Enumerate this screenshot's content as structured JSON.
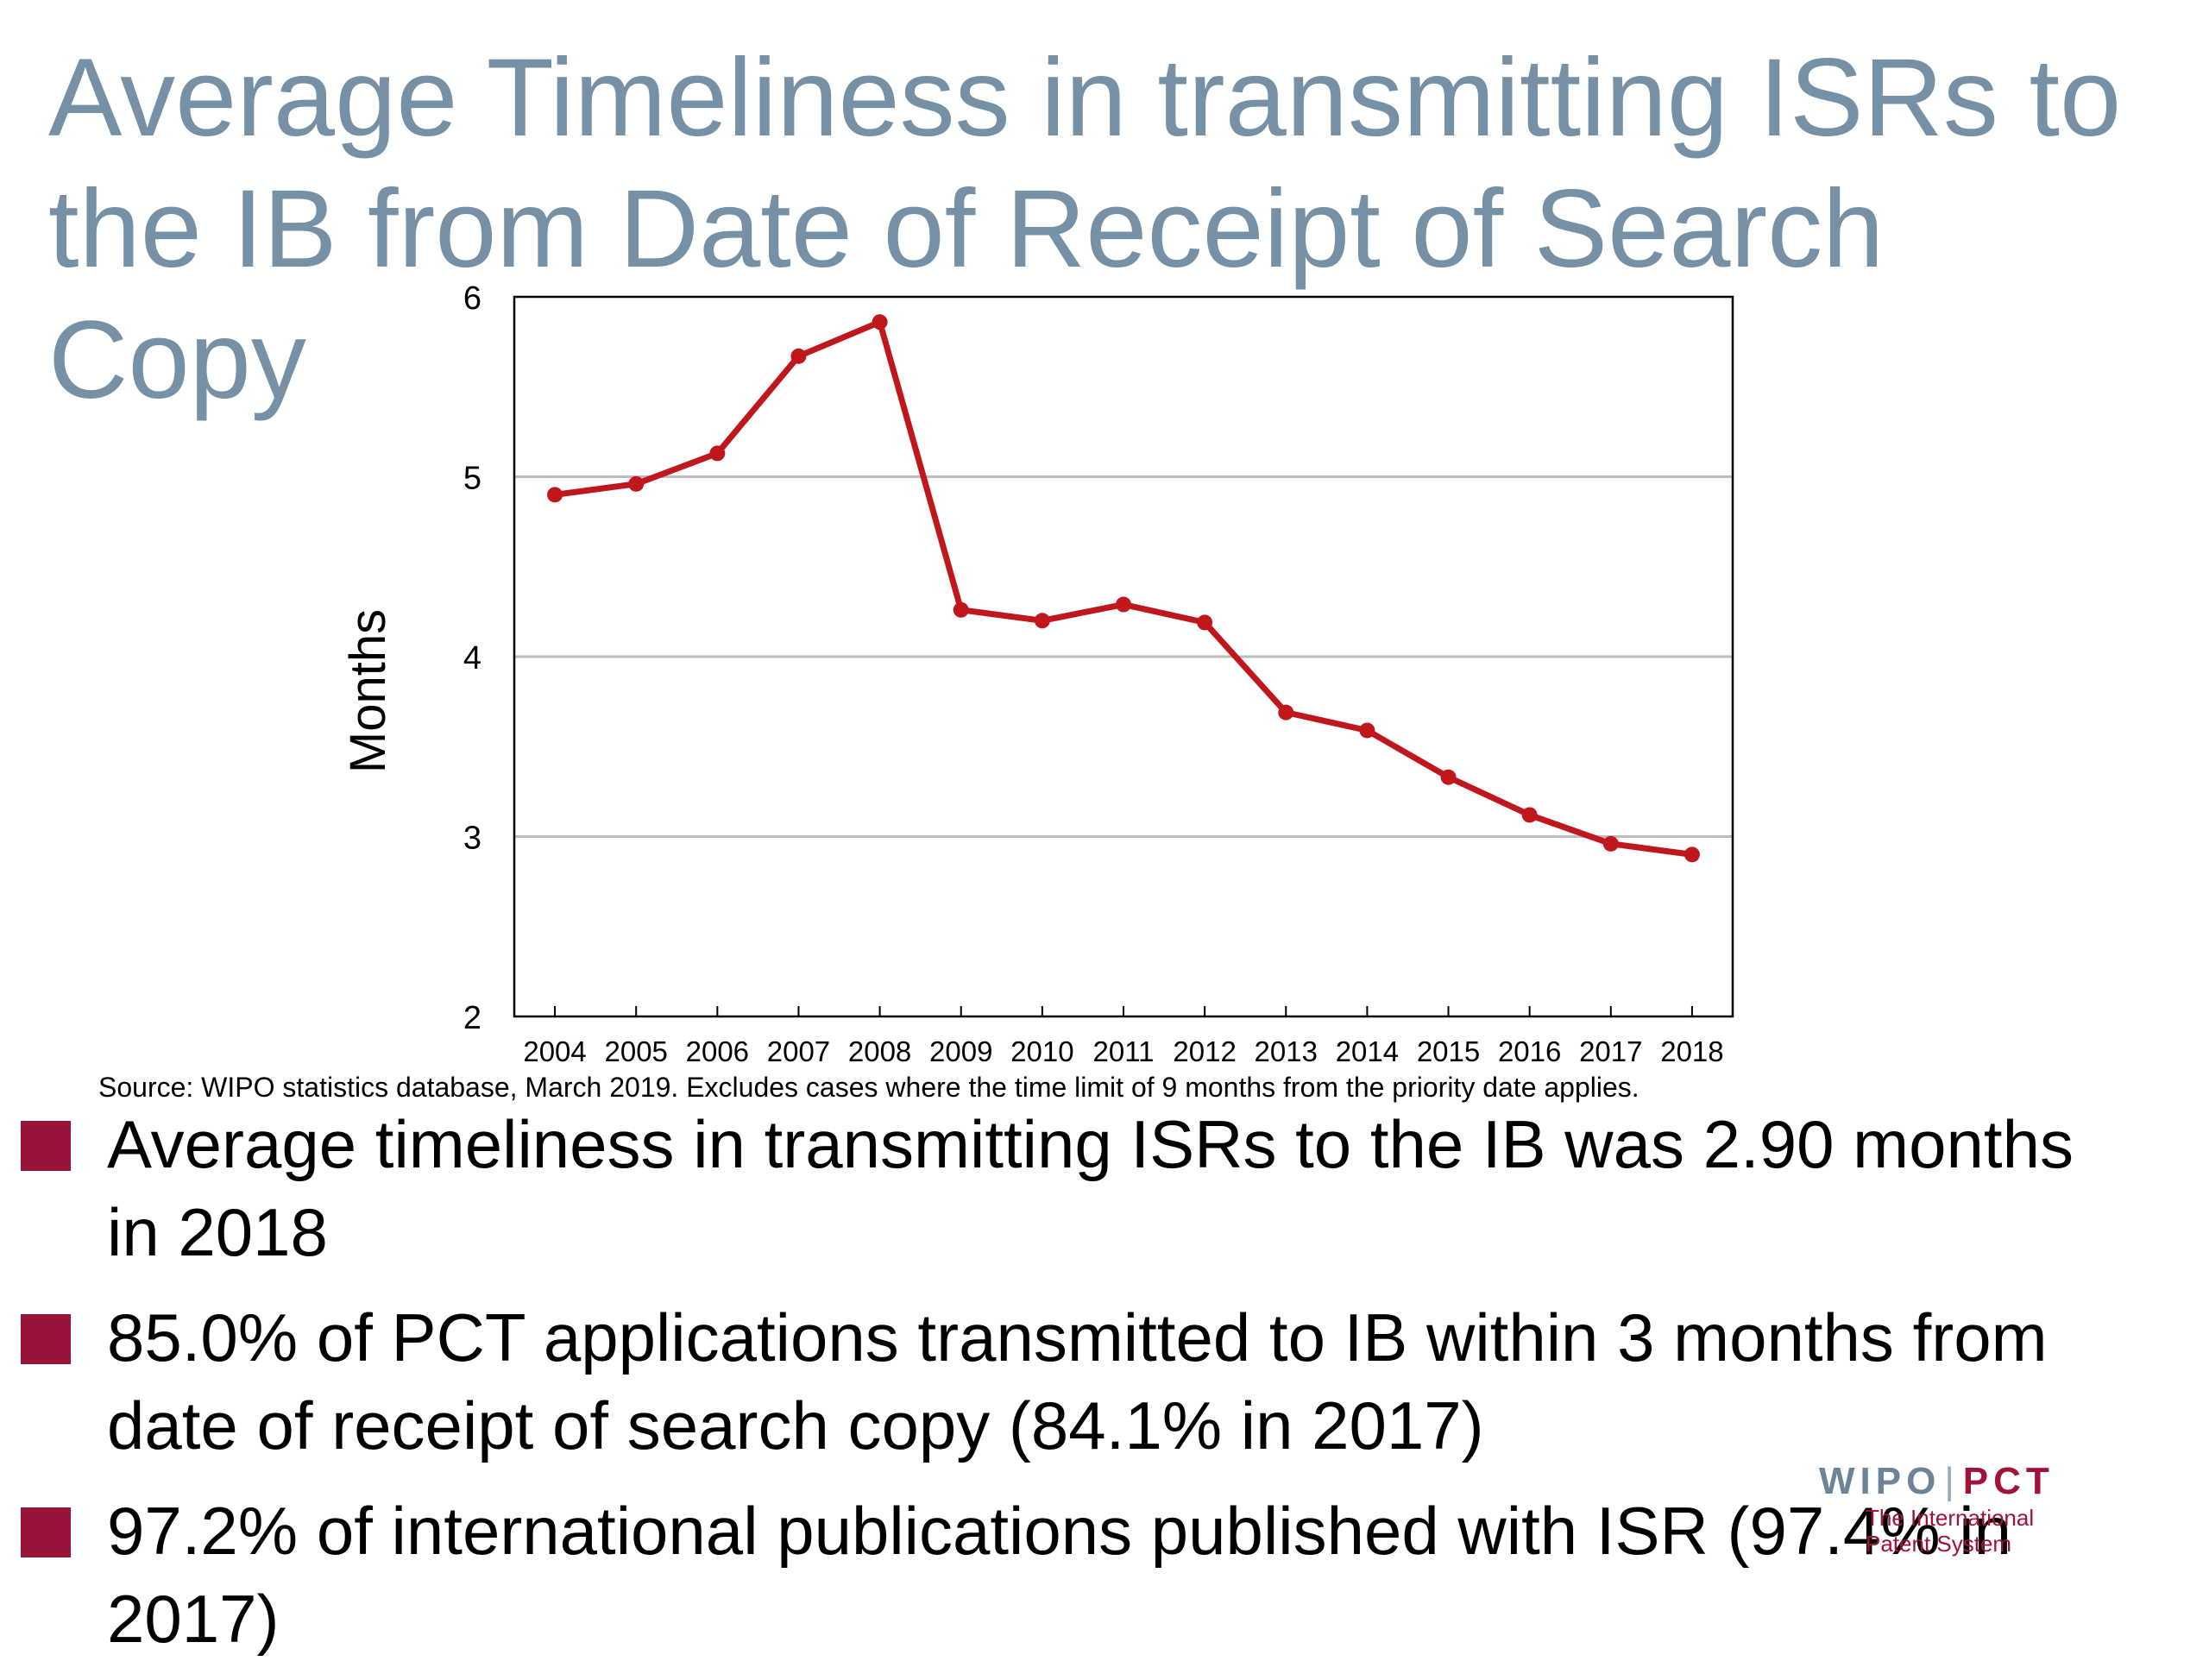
{
  "slide": {
    "title": "Average Timeliness in transmitting ISRs to the IB from Date of Receipt of Search Copy",
    "source": "Source: WIPO statistics database, March 2019.  Excludes cases where the time limit of 9 months from the priority date applies.",
    "bullets": [
      "Average timeliness in transmitting ISRs to the IB was 2.90 months in 2018",
      "85.0% of PCT applications transmitted to IB within 3 months from date of receipt of search copy (84.1% in 2017)",
      "97.2% of international publications published with ISR (97.4% in 2017)"
    ],
    "bullet_color": "#98133a",
    "title_color": "#7690a6"
  },
  "logo": {
    "wipo": "WIPO",
    "separator": "|",
    "pct": "PCT",
    "line1": "The International",
    "line2": "Patent System"
  },
  "chart_data": {
    "type": "line",
    "title": "",
    "xlabel": "",
    "ylabel": "Months",
    "ylim": [
      2,
      6
    ],
    "yticks": [
      "2",
      "3",
      "4",
      "5",
      "6"
    ],
    "grid": true,
    "categories": [
      "2004",
      "2005",
      "2006",
      "2007",
      "2008",
      "2009",
      "2010",
      "2011",
      "2012",
      "2013",
      "2014",
      "2015",
      "2016",
      "2017",
      "2018"
    ],
    "series": [
      {
        "values": [
          4.9,
          4.96,
          5.13,
          5.67,
          5.86,
          4.26,
          4.2,
          4.29,
          4.19,
          3.69,
          3.59,
          3.33,
          3.12,
          2.96,
          2.9
        ],
        "color": "#c0171c"
      }
    ]
  }
}
